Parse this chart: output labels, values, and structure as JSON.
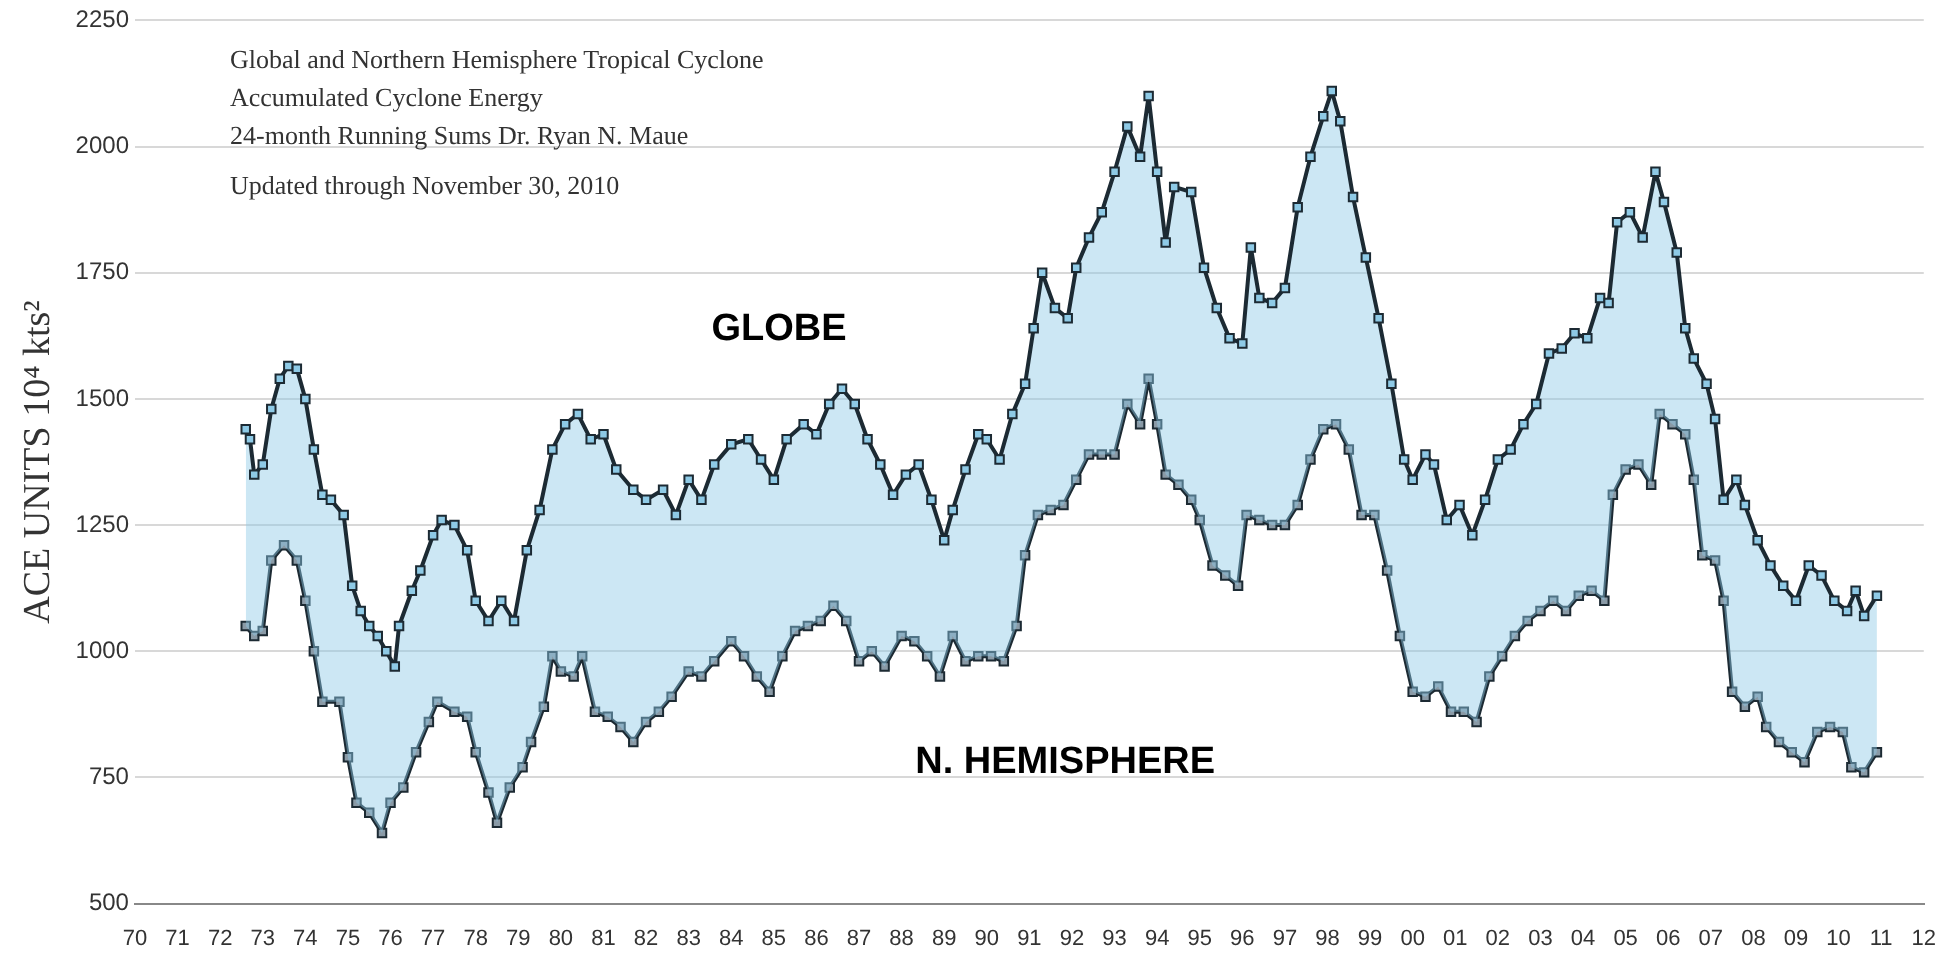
{
  "chart_data": {
    "type": "line",
    "title": "Global and Northern Hemisphere Tropical Cyclone Accumulated Cyclone Energy",
    "subtitle": "24-month Running Sums    Dr. Ryan N. Maue",
    "annotations": [
      "Updated through November 30, 2010"
    ],
    "ylabel": "ACE UNITS 10⁴ kts²",
    "xlim": [
      1970,
      2012
    ],
    "xticks": [
      {
        "value": 1970,
        "label": "70"
      },
      {
        "value": 1971,
        "label": "71"
      },
      {
        "value": 1972,
        "label": "72"
      },
      {
        "value": 1973,
        "label": "73"
      },
      {
        "value": 1974,
        "label": "74"
      },
      {
        "value": 1975,
        "label": "75"
      },
      {
        "value": 1976,
        "label": "76"
      },
      {
        "value": 1977,
        "label": "77"
      },
      {
        "value": 1978,
        "label": "78"
      },
      {
        "value": 1979,
        "label": "79"
      },
      {
        "value": 1980,
        "label": "80"
      },
      {
        "value": 1981,
        "label": "81"
      },
      {
        "value": 1982,
        "label": "82"
      },
      {
        "value": 1983,
        "label": "83"
      },
      {
        "value": 1984,
        "label": "84"
      },
      {
        "value": 1985,
        "label": "85"
      },
      {
        "value": 1986,
        "label": "86"
      },
      {
        "value": 1987,
        "label": "87"
      },
      {
        "value": 1988,
        "label": "88"
      },
      {
        "value": 1989,
        "label": "89"
      },
      {
        "value": 1990,
        "label": "90"
      },
      {
        "value": 1991,
        "label": "91"
      },
      {
        "value": 1992,
        "label": "92"
      },
      {
        "value": 1993,
        "label": "93"
      },
      {
        "value": 1994,
        "label": "94"
      },
      {
        "value": 1995,
        "label": "95"
      },
      {
        "value": 1996,
        "label": "96"
      },
      {
        "value": 1997,
        "label": "97"
      },
      {
        "value": 1998,
        "label": "98"
      },
      {
        "value": 1999,
        "label": "99"
      },
      {
        "value": 2000,
        "label": "00"
      },
      {
        "value": 2001,
        "label": "01"
      },
      {
        "value": 2002,
        "label": "02"
      },
      {
        "value": 2003,
        "label": "03"
      },
      {
        "value": 2004,
        "label": "04"
      },
      {
        "value": 2005,
        "label": "05"
      },
      {
        "value": 2006,
        "label": "06"
      },
      {
        "value": 2007,
        "label": "07"
      },
      {
        "value": 2008,
        "label": "08"
      },
      {
        "value": 2009,
        "label": "09"
      },
      {
        "value": 2010,
        "label": "10"
      },
      {
        "value": 2011,
        "label": "11"
      },
      {
        "value": 2012,
        "label": "12"
      }
    ],
    "ylim": [
      500,
      2250
    ],
    "yticks": [
      500,
      750,
      1000,
      1250,
      1500,
      1750,
      2000,
      2250
    ],
    "grid": "y",
    "legend": false,
    "marker": "square",
    "line_style": "solid",
    "series": [
      {
        "name": "GLOBE",
        "type": "area",
        "color": "#8ecae6",
        "x": [
          1972.6,
          1972.7,
          1972.8,
          1973.0,
          1973.2,
          1973.4,
          1973.6,
          1973.8,
          1974.0,
          1974.2,
          1974.4,
          1974.6,
          1974.9,
          1975.1,
          1975.3,
          1975.5,
          1975.7,
          1975.9,
          1976.1,
          1976.2,
          1976.5,
          1976.7,
          1977.0,
          1977.2,
          1977.5,
          1977.8,
          1978.0,
          1978.3,
          1978.6,
          1978.9,
          1979.2,
          1979.5,
          1979.8,
          1980.1,
          1980.4,
          1980.7,
          1981.0,
          1981.3,
          1981.7,
          1982.0,
          1982.4,
          1982.7,
          1983.0,
          1983.3,
          1983.6,
          1984.0,
          1984.4,
          1984.7,
          1985.0,
          1985.3,
          1985.7,
          1986.0,
          1986.3,
          1986.6,
          1986.9,
          1987.2,
          1987.5,
          1987.8,
          1988.1,
          1988.4,
          1988.7,
          1989.0,
          1989.2,
          1989.5,
          1989.8,
          1990.0,
          1990.3,
          1990.6,
          1990.9,
          1991.1,
          1991.3,
          1991.6,
          1991.9,
          1992.1,
          1992.4,
          1992.7,
          1993.0,
          1993.3,
          1993.6,
          1993.8,
          1994.0,
          1994.2,
          1994.4,
          1994.8,
          1995.1,
          1995.4,
          1995.7,
          1996.0,
          1996.2,
          1996.4,
          1996.7,
          1997.0,
          1997.3,
          1997.6,
          1997.9,
          1998.1,
          1998.3,
          1998.6,
          1998.9,
          1999.2,
          1999.5,
          1999.8,
          2000.0,
          2000.3,
          2000.5,
          2000.8,
          2001.1,
          2001.4,
          2001.7,
          2002.0,
          2002.3,
          2002.6,
          2002.9,
          2003.2,
          2003.5,
          2003.8,
          2004.1,
          2004.4,
          2004.6,
          2004.8,
          2005.1,
          2005.4,
          2005.7,
          2005.9,
          2006.2,
          2006.4,
          2006.6,
          2006.9,
          2007.1,
          2007.3,
          2007.6,
          2007.8,
          2008.1,
          2008.4,
          2008.7,
          2009.0,
          2009.3,
          2009.6,
          2009.9,
          2010.2,
          2010.4,
          2010.6,
          2010.9
        ],
        "values": [
          1440,
          1420,
          1350,
          1370,
          1480,
          1540,
          1565,
          1560,
          1500,
          1400,
          1310,
          1300,
          1270,
          1130,
          1080,
          1050,
          1030,
          1000,
          970,
          1050,
          1120,
          1160,
          1230,
          1260,
          1250,
          1200,
          1100,
          1060,
          1100,
          1060,
          1200,
          1280,
          1400,
          1450,
          1470,
          1420,
          1430,
          1360,
          1320,
          1300,
          1320,
          1270,
          1340,
          1300,
          1370,
          1410,
          1420,
          1380,
          1340,
          1420,
          1450,
          1430,
          1490,
          1520,
          1490,
          1420,
          1370,
          1310,
          1350,
          1370,
          1300,
          1220,
          1280,
          1360,
          1430,
          1420,
          1380,
          1470,
          1530,
          1640,
          1750,
          1680,
          1660,
          1760,
          1820,
          1870,
          1950,
          2040,
          1980,
          2100,
          1950,
          1810,
          1920,
          1910,
          1760,
          1680,
          1620,
          1610,
          1800,
          1700,
          1690,
          1720,
          1880,
          1980,
          2060,
          2110,
          2050,
          1900,
          1780,
          1660,
          1530,
          1380,
          1340,
          1390,
          1370,
          1260,
          1290,
          1230,
          1300,
          1380,
          1400,
          1450,
          1490,
          1590,
          1600,
          1630,
          1620,
          1700,
          1690,
          1850,
          1870,
          1820,
          1950,
          1890,
          1790,
          1640,
          1580,
          1530,
          1460,
          1300,
          1340,
          1290,
          1220,
          1170,
          1130,
          1100,
          1170,
          1150,
          1100,
          1080,
          1120,
          1070,
          1110
        ]
      },
      {
        "name": "N. HEMISPHERE",
        "color": "#8a9aa6",
        "x": [
          1972.6,
          1972.8,
          1973.0,
          1973.2,
          1973.5,
          1973.8,
          1974.0,
          1974.2,
          1974.4,
          1974.8,
          1975.0,
          1975.2,
          1975.5,
          1975.8,
          1976.0,
          1976.3,
          1976.6,
          1976.9,
          1977.1,
          1977.5,
          1977.8,
          1978.0,
          1978.3,
          1978.5,
          1978.8,
          1979.1,
          1979.3,
          1979.6,
          1979.8,
          1980.0,
          1980.3,
          1980.5,
          1980.8,
          1981.1,
          1981.4,
          1981.7,
          1982.0,
          1982.3,
          1982.6,
          1983.0,
          1983.3,
          1983.6,
          1984.0,
          1984.3,
          1984.6,
          1984.9,
          1985.2,
          1985.5,
          1985.8,
          1986.1,
          1986.4,
          1986.7,
          1987.0,
          1987.3,
          1987.6,
          1988.0,
          1988.3,
          1988.6,
          1988.9,
          1989.2,
          1989.5,
          1989.8,
          1990.1,
          1990.4,
          1990.7,
          1990.9,
          1991.2,
          1991.5,
          1991.8,
          1992.1,
          1992.4,
          1992.7,
          1993.0,
          1993.3,
          1993.6,
          1993.8,
          1994.0,
          1994.2,
          1994.5,
          1994.8,
          1995.0,
          1995.3,
          1995.6,
          1995.9,
          1996.1,
          1996.4,
          1996.7,
          1997.0,
          1997.3,
          1997.6,
          1997.9,
          1998.2,
          1998.5,
          1998.8,
          1999.1,
          1999.4,
          1999.7,
          2000.0,
          2000.3,
          2000.6,
          2000.9,
          2001.2,
          2001.5,
          2001.8,
          2002.1,
          2002.4,
          2002.7,
          2003.0,
          2003.3,
          2003.6,
          2003.9,
          2004.2,
          2004.5,
          2004.7,
          2005.0,
          2005.3,
          2005.6,
          2005.8,
          2006.1,
          2006.4,
          2006.6,
          2006.8,
          2007.1,
          2007.3,
          2007.5,
          2007.8,
          2008.1,
          2008.3,
          2008.6,
          2008.9,
          2009.2,
          2009.5,
          2009.8,
          2010.1,
          2010.3,
          2010.6,
          2010.9
        ],
        "values": [
          1050,
          1030,
          1040,
          1180,
          1210,
          1180,
          1100,
          1000,
          900,
          900,
          790,
          700,
          680,
          640,
          700,
          730,
          800,
          860,
          900,
          880,
          870,
          800,
          720,
          660,
          730,
          770,
          820,
          890,
          990,
          960,
          950,
          990,
          880,
          870,
          850,
          820,
          860,
          880,
          910,
          960,
          950,
          980,
          1020,
          990,
          950,
          920,
          990,
          1040,
          1050,
          1060,
          1090,
          1060,
          980,
          1000,
          970,
          1030,
          1020,
          990,
          950,
          1030,
          980,
          990,
          990,
          980,
          1050,
          1190,
          1270,
          1280,
          1290,
          1340,
          1390,
          1390,
          1390,
          1490,
          1450,
          1540,
          1450,
          1350,
          1330,
          1300,
          1260,
          1170,
          1150,
          1130,
          1270,
          1260,
          1250,
          1250,
          1290,
          1380,
          1440,
          1450,
          1400,
          1270,
          1270,
          1160,
          1030,
          920,
          910,
          930,
          880,
          880,
          860,
          950,
          990,
          1030,
          1060,
          1080,
          1100,
          1080,
          1110,
          1120,
          1100,
          1310,
          1360,
          1370,
          1330,
          1470,
          1450,
          1430,
          1340,
          1190,
          1180,
          1100,
          920,
          890,
          910,
          850,
          820,
          800,
          780,
          840,
          850,
          840,
          770,
          760,
          800
        ]
      }
    ]
  }
}
